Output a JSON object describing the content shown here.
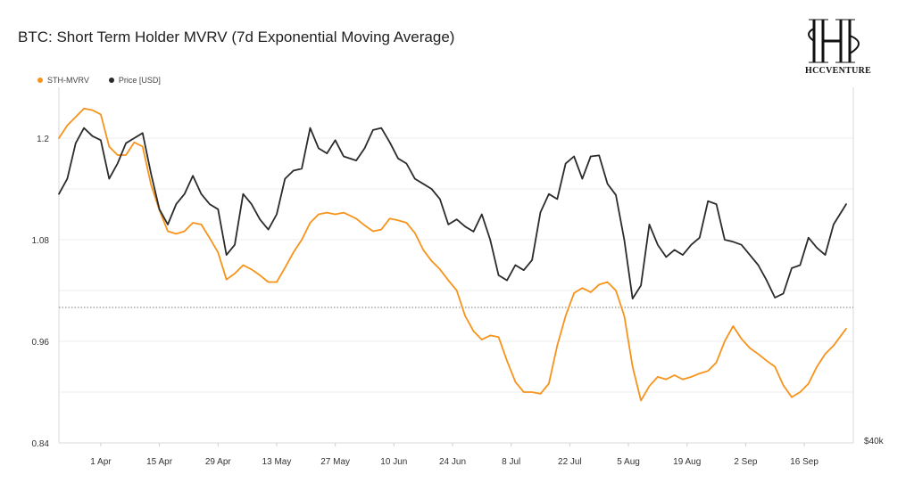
{
  "brand": {
    "name": "HCCVENTURE"
  },
  "chart_data": {
    "type": "line",
    "title": "BTC: Short Term Holder MVRV (7d Exponential Moving Average)",
    "legend_position": "top-left",
    "grid": true,
    "x_tick_labels": [
      "1 Apr",
      "15 Apr",
      "29 Apr",
      "13 May",
      "27 May",
      "10 Jun",
      "24 Jun",
      "8 Jul",
      "22 Jul",
      "5 Aug",
      "19 Aug",
      "2 Sep",
      "16 Sep"
    ],
    "y_left_ticks": [
      "0.84",
      "0.96",
      "1.08",
      "1.2"
    ],
    "y_left_range": [
      0.84,
      1.26
    ],
    "y_right_visible_tick": "$40k",
    "reference_line": {
      "y": 1.0,
      "style": "dotted"
    },
    "colors": {
      "sth_mvrv": "#f7931a",
      "price": "#2b2b2b",
      "grid": "#eeeeee"
    },
    "series": [
      {
        "name": "STH-MVRV",
        "axis": "left",
        "color": "#f7931a",
        "points": [
          [
            "Mar 22",
            1.2
          ],
          [
            "Mar 24",
            1.215
          ],
          [
            "Mar 26",
            1.225
          ],
          [
            "Mar 28",
            1.235
          ],
          [
            "Mar 30",
            1.233
          ],
          [
            "Apr 1",
            1.228
          ],
          [
            "Apr 3",
            1.19
          ],
          [
            "Apr 5",
            1.18
          ],
          [
            "Apr 7",
            1.18
          ],
          [
            "Apr 9",
            1.195
          ],
          [
            "Apr 11",
            1.19
          ],
          [
            "Apr 13",
            1.145
          ],
          [
            "Apr 15",
            1.115
          ],
          [
            "Apr 17",
            1.09
          ],
          [
            "Apr 19",
            1.087
          ],
          [
            "Apr 21",
            1.09
          ],
          [
            "Apr 23",
            1.1
          ],
          [
            "Apr 25",
            1.098
          ],
          [
            "Apr 27",
            1.082
          ],
          [
            "Apr 29",
            1.065
          ],
          [
            "May 1",
            1.033
          ],
          [
            "May 3",
            1.04
          ],
          [
            "May 5",
            1.05
          ],
          [
            "May 7",
            1.045
          ],
          [
            "May 9",
            1.038
          ],
          [
            "May 11",
            1.03
          ],
          [
            "May 13",
            1.03
          ],
          [
            "May 15",
            1.047
          ],
          [
            "May 17",
            1.065
          ],
          [
            "May 19",
            1.08
          ],
          [
            "May 21",
            1.1
          ],
          [
            "May 23",
            1.11
          ],
          [
            "May 25",
            1.112
          ],
          [
            "May 27",
            1.11
          ],
          [
            "May 29",
            1.112
          ],
          [
            "Jun 1",
            1.105
          ],
          [
            "Jun 3",
            1.097
          ],
          [
            "Jun 5",
            1.09
          ],
          [
            "Jun 7",
            1.092
          ],
          [
            "Jun 9",
            1.105
          ],
          [
            "Jun 11",
            1.103
          ],
          [
            "Jun 13",
            1.1
          ],
          [
            "Jun 15",
            1.088
          ],
          [
            "Jun 17",
            1.068
          ],
          [
            "Jun 19",
            1.055
          ],
          [
            "Jun 21",
            1.045
          ],
          [
            "Jun 23",
            1.032
          ],
          [
            "Jun 25",
            1.02
          ],
          [
            "Jun 27",
            0.99
          ],
          [
            "Jun 29",
            0.972
          ],
          [
            "Jul 1",
            0.962
          ],
          [
            "Jul 3",
            0.967
          ],
          [
            "Jul 5",
            0.965
          ],
          [
            "Jul 7",
            0.937
          ],
          [
            "Jul 9",
            0.912
          ],
          [
            "Jul 11",
            0.9
          ],
          [
            "Jul 13",
            0.9
          ],
          [
            "Jul 15",
            0.898
          ],
          [
            "Jul 17",
            0.91
          ],
          [
            "Jul 19",
            0.955
          ],
          [
            "Jul 21",
            0.99
          ],
          [
            "Jul 23",
            1.017
          ],
          [
            "Jul 25",
            1.023
          ],
          [
            "Jul 27",
            1.018
          ],
          [
            "Jul 29",
            1.027
          ],
          [
            "Jul 31",
            1.03
          ],
          [
            "Aug 2",
            1.02
          ],
          [
            "Aug 4",
            0.99
          ],
          [
            "Aug 6",
            0.93
          ],
          [
            "Aug 8",
            0.89
          ],
          [
            "Aug 10",
            0.907
          ],
          [
            "Aug 12",
            0.918
          ],
          [
            "Aug 14",
            0.915
          ],
          [
            "Aug 16",
            0.92
          ],
          [
            "Aug 18",
            0.915
          ],
          [
            "Aug 20",
            0.918
          ],
          [
            "Aug 22",
            0.922
          ],
          [
            "Aug 24",
            0.925
          ],
          [
            "Aug 26",
            0.935
          ],
          [
            "Aug 28",
            0.96
          ],
          [
            "Aug 30",
            0.978
          ],
          [
            "Sep 1",
            0.963
          ],
          [
            "Sep 3",
            0.952
          ],
          [
            "Sep 5",
            0.945
          ],
          [
            "Sep 7",
            0.937
          ],
          [
            "Sep 9",
            0.93
          ],
          [
            "Sep 11",
            0.908
          ],
          [
            "Sep 13",
            0.894
          ],
          [
            "Sep 15",
            0.9
          ],
          [
            "Sep 17",
            0.91
          ],
          [
            "Sep 19",
            0.93
          ],
          [
            "Sep 21",
            0.945
          ],
          [
            "Sep 23",
            0.955
          ],
          [
            "Sep 26",
            0.975
          ]
        ]
      },
      {
        "name": "Price [USD]",
        "axis": "right",
        "color": "#2b2b2b",
        "unit": "USD (thousands)",
        "points": [
          [
            "Mar 22",
            64.5
          ],
          [
            "Mar 24",
            66
          ],
          [
            "Mar 26",
            69.5
          ],
          [
            "Mar 28",
            71
          ],
          [
            "Mar 30",
            70.2
          ],
          [
            "Apr 1",
            69.8
          ],
          [
            "Apr 3",
            66
          ],
          [
            "Apr 5",
            67.5
          ],
          [
            "Apr 7",
            69.5
          ],
          [
            "Apr 9",
            70
          ],
          [
            "Apr 11",
            70.5
          ],
          [
            "Apr 13",
            66.5
          ],
          [
            "Apr 15",
            63
          ],
          [
            "Apr 17",
            61.5
          ],
          [
            "Apr 19",
            63.5
          ],
          [
            "Apr 21",
            64.5
          ],
          [
            "Apr 23",
            66.3
          ],
          [
            "Apr 25",
            64.5
          ],
          [
            "Apr 27",
            63.5
          ],
          [
            "Apr 29",
            63
          ],
          [
            "May 1",
            58.5
          ],
          [
            "May 3",
            59.5
          ],
          [
            "May 5",
            64.5
          ],
          [
            "May 7",
            63.5
          ],
          [
            "May 9",
            62
          ],
          [
            "May 11",
            61
          ],
          [
            "May 13",
            62.5
          ],
          [
            "May 15",
            66
          ],
          [
            "May 17",
            66.8
          ],
          [
            "May 19",
            67
          ],
          [
            "May 21",
            71
          ],
          [
            "May 23",
            69
          ],
          [
            "May 25",
            68.5
          ],
          [
            "May 27",
            69.8
          ],
          [
            "May 29",
            68.2
          ],
          [
            "Jun 1",
            67.8
          ],
          [
            "Jun 3",
            69
          ],
          [
            "Jun 5",
            70.8
          ],
          [
            "Jun 7",
            71
          ],
          [
            "Jun 9",
            69.6
          ],
          [
            "Jun 11",
            68
          ],
          [
            "Jun 13",
            67.5
          ],
          [
            "Jun 15",
            66
          ],
          [
            "Jun 17",
            65.5
          ],
          [
            "Jun 19",
            65
          ],
          [
            "Jun 21",
            64
          ],
          [
            "Jun 23",
            61.5
          ],
          [
            "Jun 25",
            62
          ],
          [
            "Jun 27",
            61.3
          ],
          [
            "Jun 29",
            60.8
          ],
          [
            "Jul 1",
            62.5
          ],
          [
            "Jul 3",
            60
          ],
          [
            "Jul 5",
            56.5
          ],
          [
            "Jul 7",
            56
          ],
          [
            "Jul 9",
            57.5
          ],
          [
            "Jul 11",
            57
          ],
          [
            "Jul 13",
            58
          ],
          [
            "Jul 15",
            62.7
          ],
          [
            "Jul 17",
            64.5
          ],
          [
            "Jul 19",
            64
          ],
          [
            "Jul 21",
            67.5
          ],
          [
            "Jul 23",
            68.2
          ],
          [
            "Jul 25",
            66
          ],
          [
            "Jul 27",
            68.2
          ],
          [
            "Jul 29",
            68.3
          ],
          [
            "Jul 31",
            65.5
          ],
          [
            "Aug 2",
            64.4
          ],
          [
            "Aug 4",
            60
          ],
          [
            "Aug 6",
            54.2
          ],
          [
            "Aug 8",
            55.5
          ],
          [
            "Aug 10",
            61.5
          ],
          [
            "Aug 12",
            59.5
          ],
          [
            "Aug 14",
            58.3
          ],
          [
            "Aug 16",
            59
          ],
          [
            "Aug 18",
            58.5
          ],
          [
            "Aug 20",
            59.5
          ],
          [
            "Aug 22",
            60.2
          ],
          [
            "Aug 24",
            63.8
          ],
          [
            "Aug 26",
            63.5
          ],
          [
            "Aug 28",
            60
          ],
          [
            "Aug 30",
            59.8
          ],
          [
            "Sep 1",
            59.5
          ],
          [
            "Sep 3",
            58.5
          ],
          [
            "Sep 5",
            57.5
          ],
          [
            "Sep 7",
            56
          ],
          [
            "Sep 9",
            54.3
          ],
          [
            "Sep 11",
            54.7
          ],
          [
            "Sep 13",
            57.2
          ],
          [
            "Sep 15",
            57.5
          ],
          [
            "Sep 17",
            60.2
          ],
          [
            "Sep 19",
            59.2
          ],
          [
            "Sep 21",
            58.5
          ],
          [
            "Sep 23",
            61.5
          ],
          [
            "Sep 26",
            63.5
          ]
        ]
      }
    ]
  }
}
